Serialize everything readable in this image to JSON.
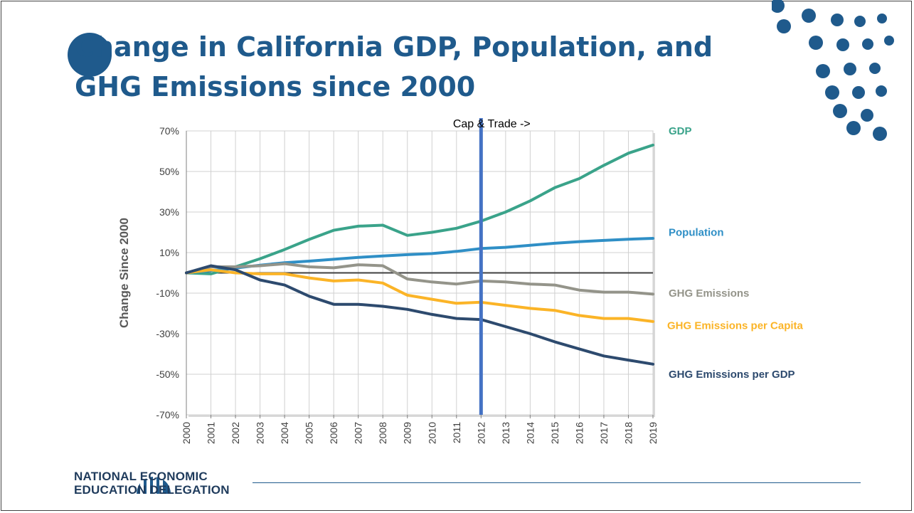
{
  "slide": {
    "title": "Change in California GDP, Population, and GHG Emissions since 2000",
    "logo": {
      "line1": "NATIONAL ECONOMIC",
      "line2": "EDUCATION DELEGATION"
    }
  },
  "chart_data": {
    "type": "line",
    "title": "",
    "xlabel": "",
    "ylabel": "Change Since 2000",
    "x": [
      2000,
      2001,
      2002,
      2003,
      2004,
      2005,
      2006,
      2007,
      2008,
      2009,
      2010,
      2011,
      2012,
      2013,
      2014,
      2015,
      2016,
      2017,
      2018,
      2019
    ],
    "ylim": [
      -70,
      70
    ],
    "yticks": [
      70,
      50,
      30,
      10,
      -10,
      -30,
      -50,
      -70
    ],
    "ytick_labels": [
      "70%",
      "50%",
      "30%",
      "10%",
      "-10%",
      "-30%",
      "-50%",
      "-70%"
    ],
    "grid": true,
    "zero_line": true,
    "annotation": {
      "text": "Cap & Trade ->",
      "x": 2012
    },
    "series": [
      {
        "name": "GDP",
        "color": "#3aa38a",
        "values": [
          0,
          -0.5,
          3,
          7,
          11.5,
          16.5,
          21,
          23,
          23.5,
          18.5,
          20,
          22,
          25.5,
          30,
          35.5,
          42,
          46.5,
          53,
          59,
          63
        ]
      },
      {
        "name": "Population",
        "color": "#2f8fc6",
        "values": [
          0,
          1.2,
          2.4,
          3.8,
          5,
          5.8,
          6.7,
          7.6,
          8.3,
          9,
          9.5,
          10.6,
          12,
          12.6,
          13.6,
          14.6,
          15.4,
          16,
          16.6,
          17
        ]
      },
      {
        "name": "GHG Emissions",
        "color": "#94948a",
        "values": [
          0,
          3,
          3,
          3.5,
          4.5,
          3,
          2.5,
          4,
          3.5,
          -3,
          -4.5,
          -5.5,
          -4,
          -4.5,
          -5.5,
          -6,
          -8.5,
          -9.5,
          -9.5,
          -10.5
        ]
      },
      {
        "name": "GHG Emissions per Capita",
        "color": "#fbb427",
        "values": [
          0,
          1.5,
          0,
          -0.5,
          -0.5,
          -2.5,
          -4,
          -3.5,
          -5,
          -11,
          -13,
          -15,
          -14.5,
          -16,
          -17.5,
          -18.5,
          -21,
          -22.5,
          -22.5,
          -24
        ]
      },
      {
        "name": "GHG Emissions per GDP",
        "color": "#2d4a6e",
        "values": [
          0,
          3.5,
          1.5,
          -3.5,
          -6,
          -11.5,
          -15.5,
          -15.5,
          -16.5,
          -18,
          -20.5,
          -22.5,
          -23,
          -26.5,
          -30,
          -34,
          -37.5,
          -41,
          -43,
          -45
        ]
      }
    ]
  }
}
